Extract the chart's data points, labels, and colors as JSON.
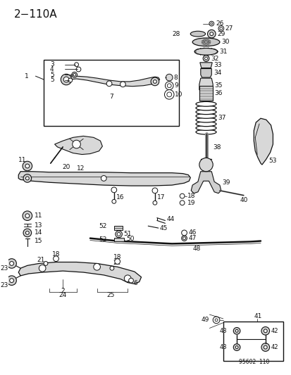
{
  "title": "2−110A",
  "bg_color": "#ffffff",
  "line_color": "#111111",
  "fig_width": 4.14,
  "fig_height": 5.33,
  "dpi": 100,
  "watermark": "95602  110"
}
